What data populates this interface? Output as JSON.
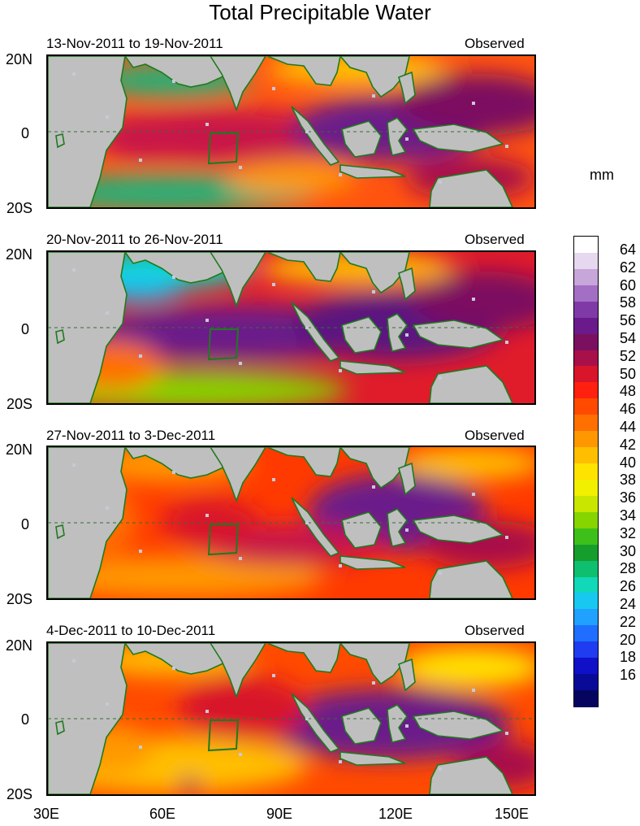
{
  "figure": {
    "title": "Total Precipitable Water",
    "unit_label": "mm",
    "lon_axis_labels": [
      "30E",
      "60E",
      "90E",
      "120E",
      "150E"
    ],
    "lat_axis_labels": [
      "20N",
      "0",
      "20S"
    ]
  },
  "panels": [
    {
      "date_range": "13-Nov-2011 to 19-Nov-2011",
      "kind": "Observed"
    },
    {
      "date_range": "20-Nov-2011 to 26-Nov-2011",
      "kind": "Observed"
    },
    {
      "date_range": "27-Nov-2011 to 3-Dec-2011",
      "kind": "Observed"
    },
    {
      "date_range": "4-Dec-2011 to 10-Dec-2011",
      "kind": "Observed"
    }
  ],
  "colorbar": {
    "tick_labels": [
      "64",
      "62",
      "60",
      "58",
      "56",
      "54",
      "52",
      "50",
      "48",
      "46",
      "44",
      "42",
      "40",
      "38",
      "36",
      "34",
      "32",
      "30",
      "28",
      "26",
      "24",
      "22",
      "20",
      "18",
      "16"
    ],
    "colors": [
      "#ffffff",
      "#e6d8ee",
      "#c7a6d9",
      "#a36fc4",
      "#7f3aa8",
      "#6a1a8a",
      "#7b1060",
      "#a8104a",
      "#d8152a",
      "#ff2010",
      "#ff4a00",
      "#ff7000",
      "#ff9800",
      "#ffbf00",
      "#ffe300",
      "#f0f000",
      "#c8e600",
      "#86d400",
      "#3ec01a",
      "#169e2c",
      "#0fbf70",
      "#10d8b8",
      "#18c8f0",
      "#20a0ff",
      "#1f6eff",
      "#1f3cf0",
      "#1010c8",
      "#0a0a98",
      "#050560"
    ]
  }
}
